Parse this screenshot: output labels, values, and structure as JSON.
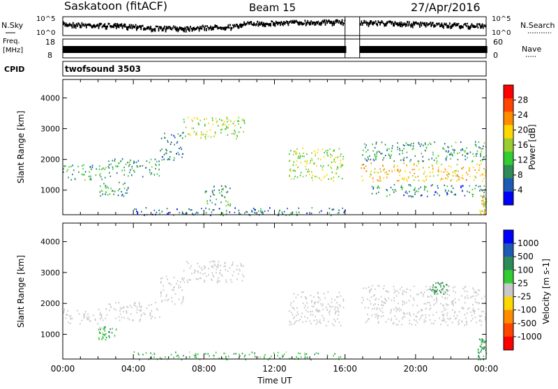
{
  "header": {
    "station": "Saskatoon (fitACF)",
    "beam": "Beam 15",
    "date": "27/Apr/2016"
  },
  "strips": {
    "nsky_label": "N.Sky",
    "nsearch_label": "N.Search",
    "noise_ticks_left": [
      "10^5",
      "10^0"
    ],
    "noise_ticks_right": [
      "10^5",
      "10^0"
    ],
    "freq_label_1": "Freq.",
    "freq_label_2": "[MHz]",
    "freq_ticks": [
      "18",
      "8"
    ],
    "nave_label": "Nave",
    "nave_ticks": [
      "60",
      "0"
    ],
    "cpid_label": "CPID",
    "cpid_value": "twofsound 3503",
    "data_gap_hours": [
      16.0,
      16.83
    ]
  },
  "colors": {
    "power_scale": [
      "#0000ff",
      "#1e5ab4",
      "#2e8b57",
      "#32cd32",
      "#9acd32",
      "#ffd700",
      "#ff8c00",
      "#ff4500",
      "#ff0000"
    ],
    "velocity_scale": [
      "#0000ff",
      "#1e5ab4",
      "#2e8b57",
      "#32cd32",
      "#c8c8c8",
      "#ffd700",
      "#ff8c00",
      "#ff4500",
      "#ff0000"
    ],
    "ground_scatter": "#c8c8c8"
  },
  "chart_data": [
    {
      "type": "heatmap",
      "name_panel": "power",
      "xlabel": "",
      "ylabel": "Slant Range [km]",
      "xlim_hours": [
        0,
        24
      ],
      "ylim_km": [
        200,
        4600
      ],
      "y_ticks": [
        1000,
        2000,
        3000,
        4000
      ],
      "colorbar": {
        "label": "Power [dB]",
        "ticks": [
          "28",
          "24",
          "20",
          "16",
          "12",
          "8",
          "4"
        ],
        "range": [
          0,
          30
        ]
      },
      "echo_bands": [
        {
          "t0": 0.0,
          "t1": 2.5,
          "r0": 1350,
          "r1": 1850,
          "level": 8
        },
        {
          "t0": 2.5,
          "t1": 5.5,
          "r0": 1450,
          "r1": 2050,
          "level": 8
        },
        {
          "t0": 5.5,
          "t1": 6.8,
          "r0": 2000,
          "r1": 2900,
          "level": 6
        },
        {
          "t0": 6.8,
          "t1": 10.3,
          "r0": 2700,
          "r1": 3400,
          "level": 14
        },
        {
          "t0": 12.8,
          "t1": 15.9,
          "r0": 1300,
          "r1": 2400,
          "level": 14
        },
        {
          "t0": 16.9,
          "t1": 24.0,
          "r0": 1300,
          "r1": 1900,
          "level": 18
        },
        {
          "t0": 16.9,
          "t1": 24.0,
          "r0": 1950,
          "r1": 2600,
          "level": 8
        },
        {
          "t0": 17.5,
          "t1": 24.0,
          "r0": 800,
          "r1": 1200,
          "level": 6
        },
        {
          "t0": 2.0,
          "t1": 3.7,
          "r0": 800,
          "r1": 1300,
          "level": 8
        },
        {
          "t0": 8.0,
          "t1": 9.5,
          "r0": 500,
          "r1": 1200,
          "level": 8
        },
        {
          "t0": 4.0,
          "t1": 16.0,
          "r0": 200,
          "r1": 450,
          "level": 5
        },
        {
          "t0": 23.6,
          "t1": 24.0,
          "r0": 200,
          "r1": 900,
          "level": 16
        }
      ]
    },
    {
      "type": "heatmap",
      "name_panel": "velocity",
      "xlabel": "Time UT",
      "ylabel": "Slant Range [km]",
      "xlim_hours": [
        0,
        24
      ],
      "ylim_km": [
        200,
        4600
      ],
      "y_ticks": [
        1000,
        2000,
        3000,
        4000
      ],
      "x_ticks": [
        "00:00",
        "04:00",
        "08:00",
        "12:00",
        "16:00",
        "20:00",
        "00:00"
      ],
      "colorbar": {
        "label": "Velocity [m s-1]",
        "ticks": [
          "1000",
          "500",
          "100",
          "25",
          "-25",
          "-100",
          "-500",
          "-1000"
        ]
      },
      "echo_bands": [
        {
          "t0": 0.0,
          "t1": 2.5,
          "r0": 1350,
          "r1": 1850,
          "v": 0
        },
        {
          "t0": 2.5,
          "t1": 5.5,
          "r0": 1450,
          "r1": 2050,
          "v": 0
        },
        {
          "t0": 5.5,
          "t1": 6.8,
          "r0": 2000,
          "r1": 2900,
          "v": 0
        },
        {
          "t0": 6.8,
          "t1": 10.3,
          "r0": 2700,
          "r1": 3400,
          "v": 0
        },
        {
          "t0": 12.8,
          "t1": 15.9,
          "r0": 1300,
          "r1": 2400,
          "v": 0
        },
        {
          "t0": 16.9,
          "t1": 24.0,
          "r0": 1300,
          "r1": 1900,
          "v": 0
        },
        {
          "t0": 16.9,
          "t1": 24.0,
          "r0": 1950,
          "r1": 2600,
          "v": 0
        },
        {
          "t0": 2.0,
          "t1": 3.0,
          "r0": 800,
          "r1": 1300,
          "v": 60
        },
        {
          "t0": 20.8,
          "t1": 21.8,
          "r0": 2300,
          "r1": 2700,
          "v": 150
        },
        {
          "t0": 4.0,
          "t1": 16.0,
          "r0": 200,
          "r1": 450,
          "v": 80
        },
        {
          "t0": 23.5,
          "t1": 24.0,
          "r0": 200,
          "r1": 900,
          "v": 100
        }
      ]
    }
  ]
}
